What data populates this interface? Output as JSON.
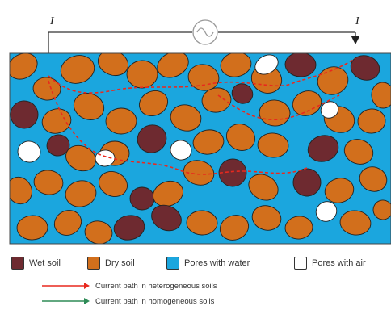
{
  "source": {
    "left_label": "I",
    "right_label": "I"
  },
  "colors": {
    "wet_soil": "#6e2a30",
    "dry_soil": "#d26f1c",
    "pores_water": "#1ba6de",
    "pores_air": "#ffffff",
    "heterogeneous_path": "#e8291e",
    "homogeneous_path": "#2e8b57",
    "outline": "#222222"
  },
  "legend": {
    "wet_soil": "Wet soil",
    "dry_soil": "Dry soil",
    "pores_water": "Pores with water",
    "pores_air": "Pores with air"
  },
  "paths": {
    "heterogeneous": "Current path in heterogeneous soils",
    "homogeneous": "Current path in homogeneous soils"
  }
}
